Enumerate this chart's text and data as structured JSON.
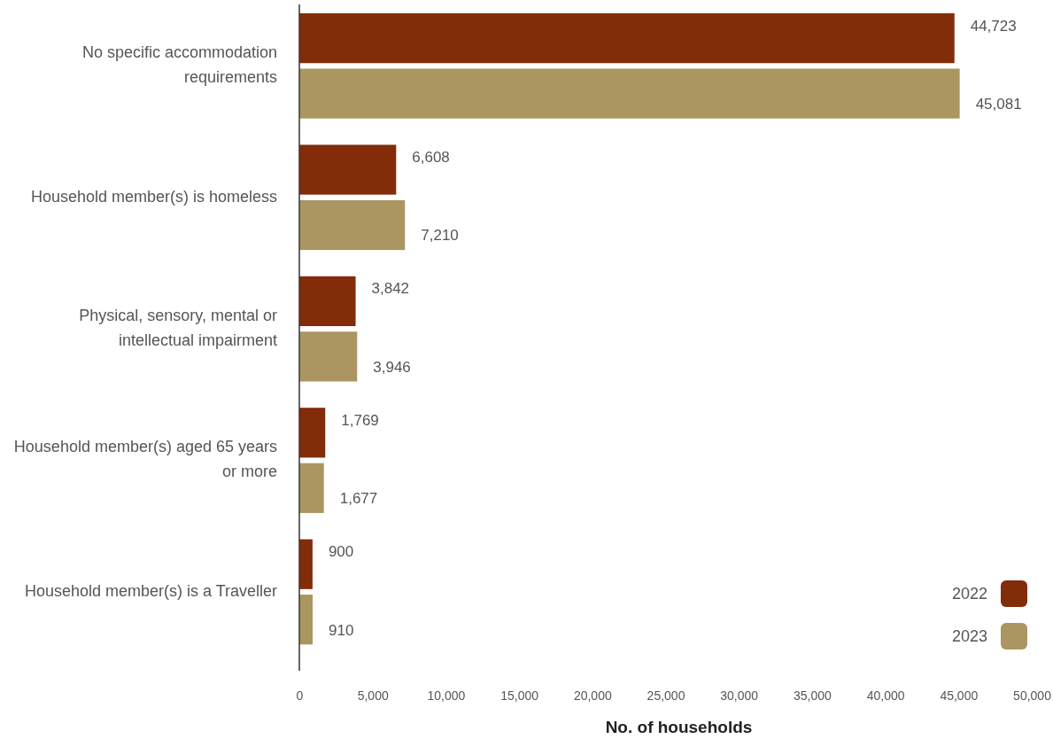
{
  "chart_data": {
    "type": "bar",
    "orientation": "horizontal",
    "categories": [
      "No specific accommodation requirements",
      "Household member(s) is homeless",
      "Physical, sensory, mental or intellectual impairment",
      "Household member(s) aged 65 years or more",
      "Household member(s) is a Traveller"
    ],
    "series": [
      {
        "name": "2022",
        "color": "#822c0a",
        "values": [
          44723,
          6608,
          3842,
          1769,
          900
        ],
        "value_labels": [
          "44,723",
          "6,608",
          "3,842",
          "1,769",
          "900"
        ]
      },
      {
        "name": "2023",
        "color": "#ab9662",
        "values": [
          45081,
          7210,
          3946,
          1677,
          910
        ],
        "value_labels": [
          "45,081",
          "7,210",
          "3,946",
          "1,677",
          "910"
        ]
      }
    ],
    "xlim": [
      0,
      50000
    ],
    "xticks": [
      0,
      {
        "value": 5000,
        "label": "5,000"
      },
      {
        "value": 10000,
        "label": "10,000"
      },
      {
        "value": 15000,
        "label": "15,000"
      },
      {
        "value": 20000,
        "label": "20,000"
      },
      {
        "value": 25000,
        "label": "25,000"
      },
      {
        "value": 30000,
        "label": "30,000"
      },
      {
        "value": 35000,
        "label": "35,000"
      },
      {
        "value": 40000,
        "label": "40,000"
      },
      {
        "value": 45000,
        "label": "45,000"
      },
      {
        "value": 50000,
        "label": "50,000"
      }
    ],
    "xlabel": "No. of households",
    "legend": "bottom right",
    "grid": false
  }
}
